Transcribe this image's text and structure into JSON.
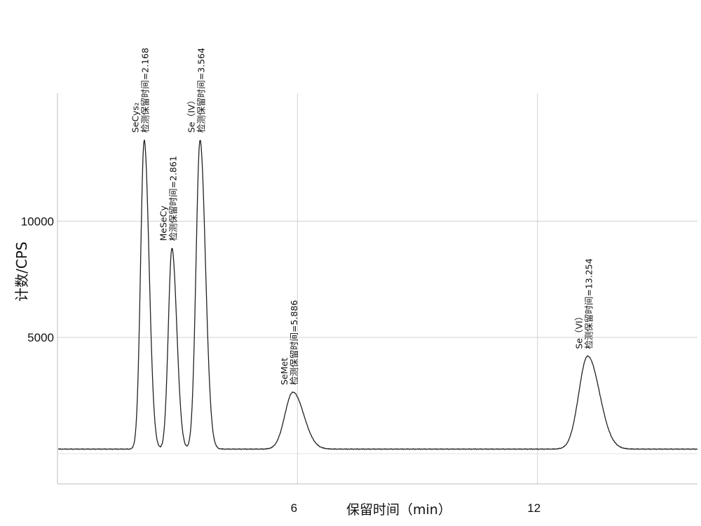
{
  "chart_data": {
    "type": "line",
    "xlabel": "保留时间（min）",
    "ylabel": "计数/CPS",
    "x_ticks": [
      "6",
      "12"
    ],
    "y_ticks": [
      "10000",
      "5000"
    ],
    "xlim": [
      0,
      16
    ],
    "ylim": [
      -1300,
      15500
    ],
    "grid": true,
    "baseline": 200,
    "series": [
      {
        "peaks": [
          {
            "name": "SeCys₂",
            "label": "检测保留时间=2.168",
            "rt": 2.168,
            "height": 13500,
            "width": 0.09
          },
          {
            "name": "MeSeCy",
            "label": "检测保留时间=2.861",
            "rt": 2.861,
            "height": 8850,
            "width": 0.09
          },
          {
            "name": "Se（IV）",
            "label": "检测保留时间=3.564",
            "rt": 3.564,
            "height": 13500,
            "width": 0.1
          },
          {
            "name": "SeMet",
            "label": "检测保留时间=5.886",
            "rt": 5.886,
            "height": 2650,
            "width": 0.2
          },
          {
            "name": "Se（VI）",
            "label": "检测保留时间=13.254",
            "rt": 13.254,
            "height": 4200,
            "width": 0.22
          }
        ]
      }
    ]
  }
}
